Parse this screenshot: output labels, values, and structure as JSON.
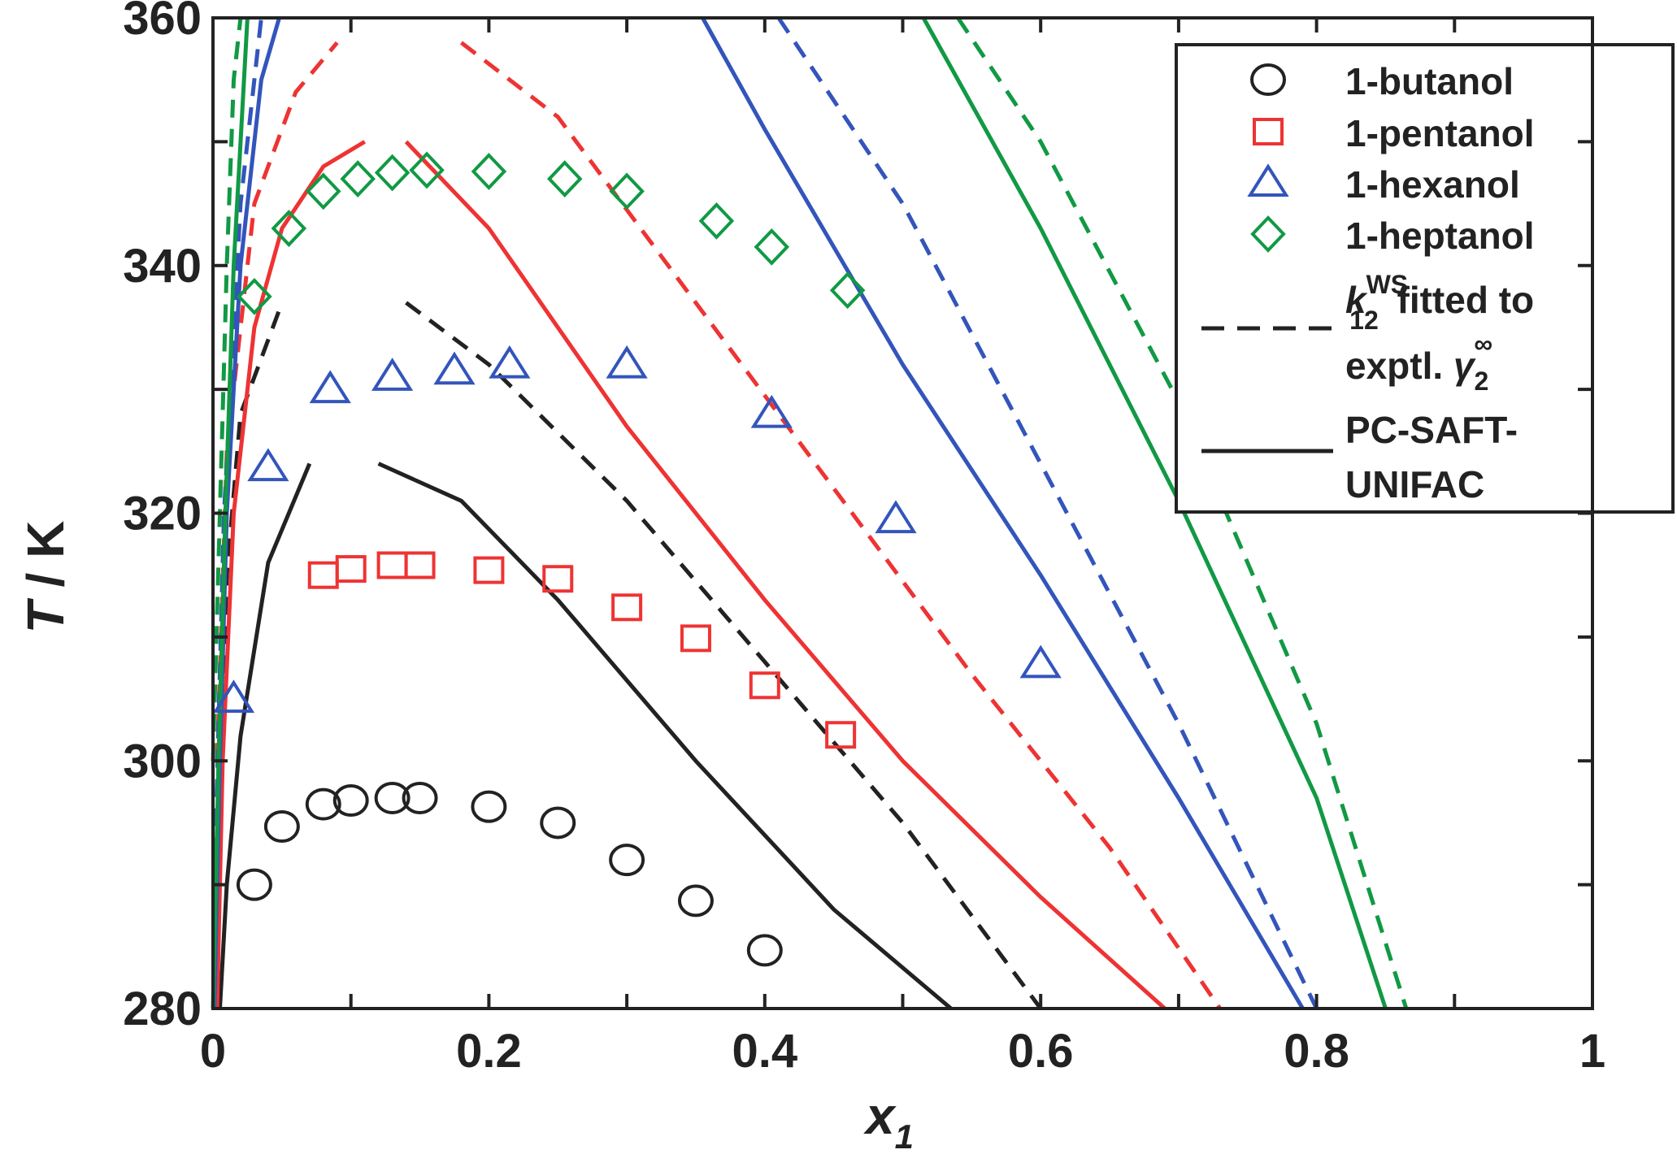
{
  "chart_data": {
    "type": "scatter",
    "title": "",
    "xlabel_main": "x",
    "xlabel_sub": "1",
    "ylabel_italic": "T",
    "ylabel_rest": " / K",
    "xlim": [
      0,
      1
    ],
    "ylim": [
      280,
      360
    ],
    "x_ticks": [
      0,
      0.2,
      0.4,
      0.6,
      0.8,
      1
    ],
    "x_tick_labels": [
      "0",
      "0.2",
      "0.4",
      "0.6",
      "0.8",
      "1"
    ],
    "y_ticks": [
      280,
      300,
      320,
      340,
      360
    ],
    "y_tick_labels": [
      "280",
      "300",
      "320",
      "340",
      "360"
    ],
    "grid": false,
    "legend_position": "top-right",
    "series": [
      {
        "name": "1-butanol",
        "color": "#222222",
        "marker": "circle",
        "points": [
          [
            0.03,
            290
          ],
          [
            0.05,
            294.7
          ],
          [
            0.08,
            296.5
          ],
          [
            0.1,
            296.8
          ],
          [
            0.13,
            297
          ],
          [
            0.15,
            297
          ],
          [
            0.2,
            296.3
          ],
          [
            0.25,
            295
          ],
          [
            0.3,
            292
          ],
          [
            0.35,
            288.7
          ],
          [
            0.4,
            284.7
          ]
        ],
        "curve_solid": [
          [
            [
              0.005,
              280
            ],
            [
              0.01,
              290
            ],
            [
              0.02,
              302
            ],
            [
              0.04,
              316
            ],
            [
              0.07,
              324
            ]
          ],
          [
            [
              0.12,
              324
            ],
            [
              0.18,
              321
            ],
            [
              0.25,
              313
            ],
            [
              0.35,
              300
            ],
            [
              0.45,
              288
            ],
            [
              0.535,
              280
            ]
          ]
        ],
        "curve_dashed": [
          [
            [
              0.005,
              300
            ],
            [
              0.01,
              315
            ],
            [
              0.02,
              328
            ],
            [
              0.05,
              337
            ]
          ],
          [
            [
              0.14,
              337
            ],
            [
              0.2,
              332
            ],
            [
              0.3,
              321
            ],
            [
              0.4,
              308
            ],
            [
              0.5,
              295
            ],
            [
              0.6,
              280
            ]
          ]
        ]
      },
      {
        "name": "1-pentanol",
        "color": "#ee3333",
        "marker": "square",
        "points": [
          [
            0.08,
            315
          ],
          [
            0.1,
            315.5
          ],
          [
            0.13,
            315.8
          ],
          [
            0.15,
            315.8
          ],
          [
            0.2,
            315.4
          ],
          [
            0.25,
            314.7
          ],
          [
            0.3,
            312.4
          ],
          [
            0.35,
            309.9
          ],
          [
            0.4,
            306.1
          ],
          [
            0.455,
            302.1
          ]
        ],
        "curve_solid": [
          [
            [
              0.003,
              280
            ],
            [
              0.007,
              300
            ],
            [
              0.015,
              320
            ],
            [
              0.03,
              335
            ],
            [
              0.05,
              343
            ],
            [
              0.08,
              348
            ],
            [
              0.11,
              350
            ]
          ],
          [
            [
              0.14,
              350
            ],
            [
              0.2,
              343
            ],
            [
              0.3,
              327
            ],
            [
              0.4,
              313
            ],
            [
              0.5,
              300
            ],
            [
              0.6,
              289
            ],
            [
              0.69,
              280
            ]
          ]
        ],
        "curve_dashed": [
          [
            [
              0.003,
              300
            ],
            [
              0.01,
              325
            ],
            [
              0.03,
              345
            ],
            [
              0.06,
              354
            ],
            [
              0.09,
              358
            ]
          ],
          [
            [
              0.18,
              358
            ],
            [
              0.25,
              352
            ],
            [
              0.35,
              337
            ],
            [
              0.45,
              322
            ],
            [
              0.55,
              307
            ],
            [
              0.65,
              293
            ],
            [
              0.73,
              280
            ]
          ]
        ]
      },
      {
        "name": "1-hexanol",
        "color": "#3355bb",
        "marker": "triangle",
        "points": [
          [
            0.015,
            305
          ],
          [
            0.04,
            323.7
          ],
          [
            0.085,
            330
          ],
          [
            0.13,
            331
          ],
          [
            0.175,
            331.5
          ],
          [
            0.215,
            332
          ],
          [
            0.3,
            332
          ],
          [
            0.405,
            328
          ],
          [
            0.495,
            319.5
          ],
          [
            0.6,
            307.8
          ]
        ],
        "curve_solid": [
          [
            [
              0.001,
              280
            ],
            [
              0.005,
              300
            ],
            [
              0.01,
              320
            ],
            [
              0.02,
              340
            ],
            [
              0.035,
              355
            ],
            [
              0.048,
              360
            ]
          ],
          [
            [
              0.355,
              360
            ],
            [
              0.4,
              351
            ],
            [
              0.5,
              332
            ],
            [
              0.6,
              315
            ],
            [
              0.7,
              297
            ],
            [
              0.79,
              280
            ]
          ]
        ],
        "curve_dashed": [
          [
            [
              0.001,
              290
            ],
            [
              0.008,
              320
            ],
            [
              0.02,
              345
            ],
            [
              0.035,
              360
            ]
          ],
          [
            [
              0.41,
              360
            ],
            [
              0.5,
              345
            ],
            [
              0.6,
              324
            ],
            [
              0.7,
              303
            ],
            [
              0.8,
              280
            ]
          ]
        ]
      },
      {
        "name": "1-heptanol",
        "color": "#119944",
        "marker": "diamond",
        "points": [
          [
            0.03,
            337.5
          ],
          [
            0.055,
            343
          ],
          [
            0.08,
            346
          ],
          [
            0.105,
            347
          ],
          [
            0.13,
            347.5
          ],
          [
            0.155,
            347.7
          ],
          [
            0.2,
            347.6
          ],
          [
            0.255,
            347
          ],
          [
            0.3,
            346
          ],
          [
            0.365,
            343.6
          ],
          [
            0.405,
            341.5
          ],
          [
            0.46,
            338
          ]
        ],
        "curve_solid": [
          [
            [
              0.0,
              280
            ],
            [
              0.004,
              300
            ],
            [
              0.009,
              320
            ],
            [
              0.015,
              340
            ],
            [
              0.025,
              360
            ]
          ],
          [
            [
              0.515,
              360
            ],
            [
              0.6,
              343
            ],
            [
              0.7,
              321
            ],
            [
              0.8,
              297
            ],
            [
              0.85,
              280
            ]
          ]
        ],
        "curve_dashed": [
          [
            [
              0.0,
              300
            ],
            [
              0.005,
              320
            ],
            [
              0.01,
              340
            ],
            [
              0.015,
              355
            ],
            [
              0.02,
              360
            ]
          ],
          [
            [
              0.54,
              360
            ],
            [
              0.6,
              350
            ],
            [
              0.7,
              329
            ],
            [
              0.8,
              303
            ],
            [
              0.865,
              280
            ]
          ]
        ]
      }
    ],
    "legend": {
      "entries": [
        "1-butanol",
        "1-pentanol",
        "1-hexanol",
        "1-heptanol"
      ],
      "dashed_k": "k",
      "dashed_k_sup": "WS",
      "dashed_k_sub": "12",
      "dashed_line1_rest": " fitted to",
      "dashed_line2_prefix": "exptl. ",
      "dashed_gamma": "γ",
      "dashed_gamma_sub": "2",
      "dashed_gamma_sup": "∞",
      "solid_line1": "PC-SAFT-",
      "solid_line2": "UNIFAC"
    }
  }
}
